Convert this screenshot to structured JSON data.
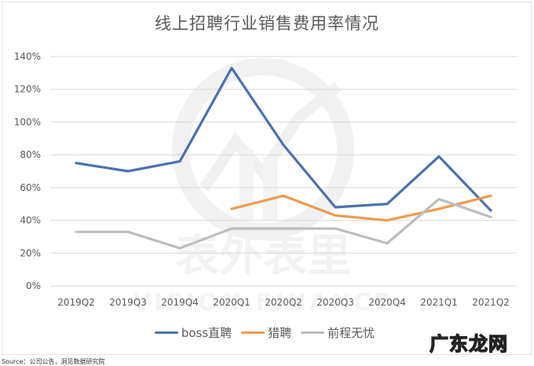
{
  "title": "线上招聘行业销售费用率情况",
  "source": "Source：公司公告，洞见数据研究院",
  "corner_stamp": "广东龙网",
  "watermark": {
    "text_cn": "表外表里",
    "text_en": "VISION FINANCE"
  },
  "legend": [
    {
      "label": "boss直聘",
      "color": "#4a72ad"
    },
    {
      "label": "猎聘",
      "color": "#ed9a4e"
    },
    {
      "label": "前程无忧",
      "color": "#bdbdbd"
    }
  ],
  "chart_data": {
    "type": "line",
    "title": "线上招聘行业销售费用率情况",
    "xlabel": "",
    "ylabel": "",
    "categories": [
      "2019Q2",
      "2019Q3",
      "2019Q4",
      "2020Q1",
      "2020Q2",
      "2020Q3",
      "2020Q4",
      "2021Q1",
      "2021Q2"
    ],
    "y_ticks": [
      "0%",
      "20%",
      "40%",
      "60%",
      "80%",
      "100%",
      "120%",
      "140%"
    ],
    "ylim": [
      0,
      140
    ],
    "grid": true,
    "legend_position": "bottom",
    "series": [
      {
        "name": "boss直聘",
        "color": "#4a72ad",
        "values": [
          75,
          70,
          76,
          133,
          86,
          48,
          50,
          79,
          46
        ]
      },
      {
        "name": "猎聘",
        "color": "#ed9a4e",
        "values": [
          null,
          null,
          null,
          47,
          55,
          43,
          40,
          47,
          55
        ]
      },
      {
        "name": "前程无忧",
        "color": "#bdbdbd",
        "values": [
          33,
          33,
          23,
          35,
          35,
          35,
          26,
          53,
          42
        ]
      }
    ]
  }
}
